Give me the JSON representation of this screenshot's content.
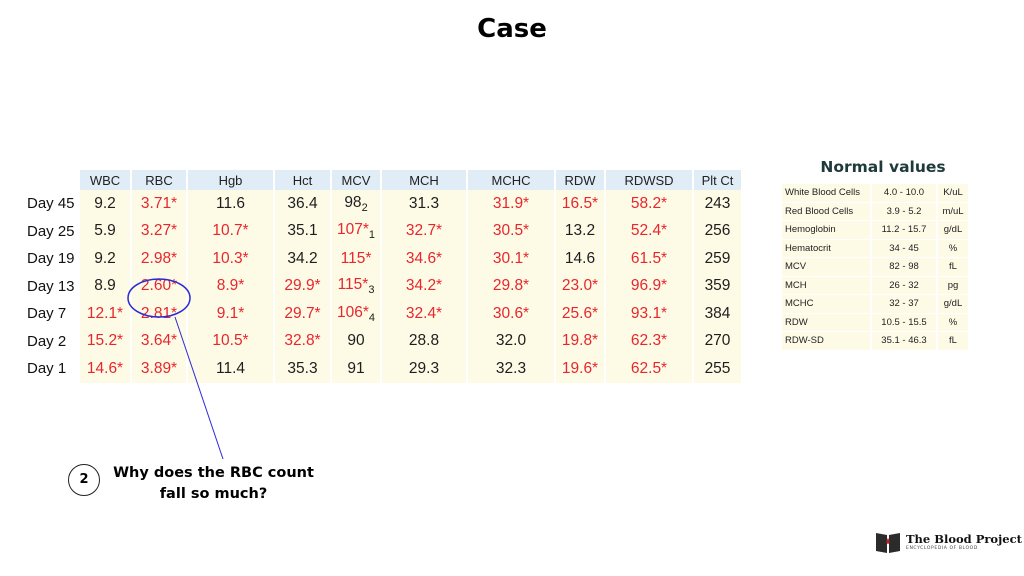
{
  "title": "Case",
  "lab_table": {
    "columns": [
      "WBC",
      "RBC",
      "Hgb",
      "Hct",
      "MCV",
      "MCH",
      "MCHC",
      "RDW",
      "RDWSD",
      "Plt Ct"
    ],
    "rows": [
      {
        "day": "Day 45",
        "cells": [
          {
            "v": "9.2",
            "flag": false
          },
          {
            "v": "3.71*",
            "flag": true
          },
          {
            "v": "11.6",
            "flag": false
          },
          {
            "v": "36.4",
            "flag": false
          },
          {
            "v": "98",
            "sub": "2",
            "flag": false
          },
          {
            "v": "31.3",
            "flag": false
          },
          {
            "v": "31.9*",
            "flag": true
          },
          {
            "v": "16.5*",
            "flag": true
          },
          {
            "v": "58.2*",
            "flag": true
          },
          {
            "v": "243",
            "flag": false
          }
        ]
      },
      {
        "day": "Day 25",
        "cells": [
          {
            "v": "5.9",
            "flag": false
          },
          {
            "v": "3.27*",
            "flag": true
          },
          {
            "v": "10.7*",
            "flag": true
          },
          {
            "v": "35.1",
            "flag": false
          },
          {
            "v": "107*",
            "sub": "1",
            "flag": true
          },
          {
            "v": "32.7*",
            "flag": true
          },
          {
            "v": "30.5*",
            "flag": true
          },
          {
            "v": "13.2",
            "flag": false
          },
          {
            "v": "52.4*",
            "flag": true
          },
          {
            "v": "256",
            "flag": false
          }
        ]
      },
      {
        "day": "Day 19",
        "cells": [
          {
            "v": "9.2",
            "flag": false
          },
          {
            "v": "2.98*",
            "flag": true
          },
          {
            "v": "10.3*",
            "flag": true
          },
          {
            "v": "34.2",
            "flag": false
          },
          {
            "v": "115*",
            "flag": true
          },
          {
            "v": "34.6*",
            "flag": true
          },
          {
            "v": "30.1*",
            "flag": true
          },
          {
            "v": "14.6",
            "flag": false
          },
          {
            "v": "61.5*",
            "flag": true
          },
          {
            "v": "259",
            "flag": false
          }
        ]
      },
      {
        "day": "Day 13",
        "cells": [
          {
            "v": "8.9",
            "flag": false
          },
          {
            "v": "2.60*",
            "flag": true
          },
          {
            "v": "8.9*",
            "flag": true
          },
          {
            "v": "29.9*",
            "flag": true
          },
          {
            "v": "115*",
            "sub": "3",
            "flag": true
          },
          {
            "v": "34.2*",
            "flag": true
          },
          {
            "v": "29.8*",
            "flag": true
          },
          {
            "v": "23.0*",
            "flag": true
          },
          {
            "v": "96.9*",
            "flag": true
          },
          {
            "v": "359",
            "flag": false
          }
        ]
      },
      {
        "day": "Day 7",
        "cells": [
          {
            "v": "12.1*",
            "flag": true
          },
          {
            "v": "2.81*",
            "flag": true
          },
          {
            "v": "9.1*",
            "flag": true
          },
          {
            "v": "29.7*",
            "flag": true
          },
          {
            "v": "106*",
            "sub": "4",
            "flag": true
          },
          {
            "v": "32.4*",
            "flag": true
          },
          {
            "v": "30.6*",
            "flag": true
          },
          {
            "v": "25.6*",
            "flag": true
          },
          {
            "v": "93.1*",
            "flag": true
          },
          {
            "v": "384",
            "flag": false
          }
        ]
      },
      {
        "day": "Day 2",
        "cells": [
          {
            "v": "15.2*",
            "flag": true
          },
          {
            "v": "3.64*",
            "flag": true
          },
          {
            "v": "10.5*",
            "flag": true
          },
          {
            "v": "32.8*",
            "flag": true
          },
          {
            "v": "90",
            "flag": false
          },
          {
            "v": "28.8",
            "flag": false
          },
          {
            "v": "32.0",
            "flag": false
          },
          {
            "v": "19.8*",
            "flag": true
          },
          {
            "v": "62.3*",
            "flag": true
          },
          {
            "v": "270",
            "flag": false
          }
        ]
      },
      {
        "day": "Day 1",
        "cells": [
          {
            "v": "14.6*",
            "flag": true
          },
          {
            "v": "3.89*",
            "flag": true
          },
          {
            "v": "11.4",
            "flag": false
          },
          {
            "v": "35.3",
            "flag": false
          },
          {
            "v": "91",
            "flag": false
          },
          {
            "v": "29.3",
            "flag": false
          },
          {
            "v": "32.3",
            "flag": false
          },
          {
            "v": "19.6*",
            "flag": true
          },
          {
            "v": "62.5*",
            "flag": true
          },
          {
            "v": "255",
            "flag": false
          }
        ]
      }
    ]
  },
  "annotation": {
    "number": "2",
    "question": "Why does the RBC count fall so much?",
    "circle_color": "#2a2ad8"
  },
  "normal_values": {
    "title": "Normal values",
    "rows": [
      {
        "name": "White Blood Cells",
        "range": "4.0 - 10.0",
        "unit": "K/uL"
      },
      {
        "name": "Red Blood Cells",
        "range": "3.9 - 5.2",
        "unit": "m/uL"
      },
      {
        "name": "Hemoglobin",
        "range": "11.2 - 15.7",
        "unit": "g/dL"
      },
      {
        "name": "Hematocrit",
        "range": "34 - 45",
        "unit": "%"
      },
      {
        "name": "MCV",
        "range": "82 - 98",
        "unit": "fL"
      },
      {
        "name": "MCH",
        "range": "26 - 32",
        "unit": "pg"
      },
      {
        "name": "MCHC",
        "range": "32 - 37",
        "unit": "g/dL"
      },
      {
        "name": "RDW",
        "range": "10.5 - 15.5",
        "unit": "%"
      },
      {
        "name": "RDW-SD",
        "range": "35.1 - 46.3",
        "unit": "fL"
      }
    ]
  },
  "logo": {
    "name": "The Blood Project",
    "tagline": "ENCYCLOPEDIA OF BLOOD"
  },
  "colors": {
    "flag": "#e8262d",
    "header_bg": "#e0ecf6",
    "cell_bg": "#fdfbe6"
  }
}
